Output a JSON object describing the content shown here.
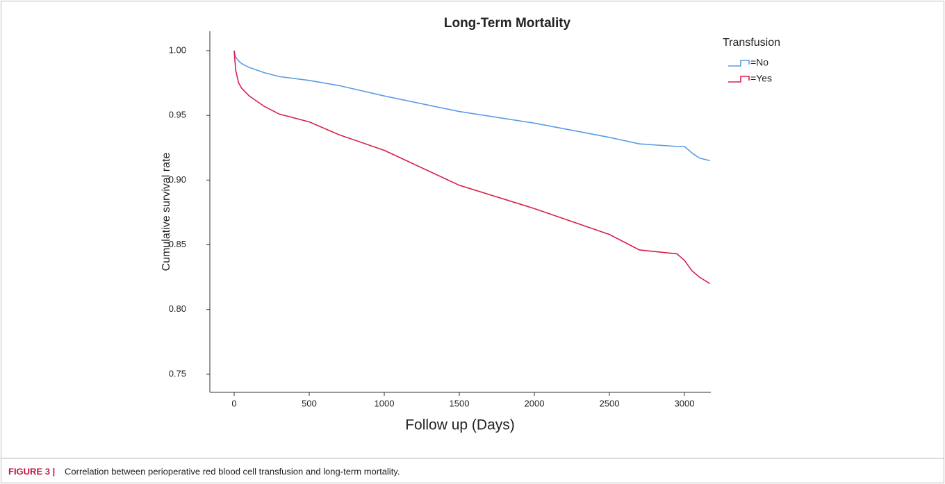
{
  "chart_data": {
    "type": "line",
    "title": "Long-Term Mortality",
    "x_label": "Follow up (Days)",
    "y_label": "Cumulative survival rate",
    "legend_title": "Transfusion",
    "legend_position": "upper right",
    "xlim": [
      -162,
      3176
    ],
    "ylim": [
      0.736,
      1.015
    ],
    "xticks": [
      0,
      500,
      1000,
      1500,
      2000,
      2500,
      3000
    ],
    "yticks": [
      {
        "value": 0.75,
        "label": "0.75"
      },
      {
        "value": 0.8,
        "label": "0.80"
      },
      {
        "value": 0.85,
        "label": "0.85"
      },
      {
        "value": 0.9,
        "label": "0.90"
      },
      {
        "value": 0.95,
        "label": "0.95"
      },
      {
        "value": 1.0,
        "label": "1.00"
      }
    ],
    "x": [
      0,
      10,
      30,
      50,
      100,
      200,
      300,
      500,
      700,
      1000,
      1500,
      2000,
      2500,
      2700,
      2950,
      3000,
      3050,
      3100,
      3170
    ],
    "series": [
      {
        "name": "=No",
        "color": "#5b9be6",
        "values": [
          1.0,
          0.995,
          0.992,
          0.99,
          0.987,
          0.983,
          0.98,
          0.977,
          0.973,
          0.965,
          0.953,
          0.944,
          0.933,
          0.928,
          0.926,
          0.926,
          0.921,
          0.917,
          0.915
        ]
      },
      {
        "name": "=Yes",
        "color": "#d81e4a",
        "values": [
          1.0,
          0.985,
          0.975,
          0.971,
          0.965,
          0.957,
          0.951,
          0.945,
          0.935,
          0.923,
          0.896,
          0.878,
          0.858,
          0.846,
          0.843,
          0.838,
          0.83,
          0.825,
          0.82
        ]
      }
    ]
  },
  "caption": {
    "label": "FIGURE 3 |",
    "text": "Correlation between perioperative red blood cell transfusion and long-term mortality."
  }
}
